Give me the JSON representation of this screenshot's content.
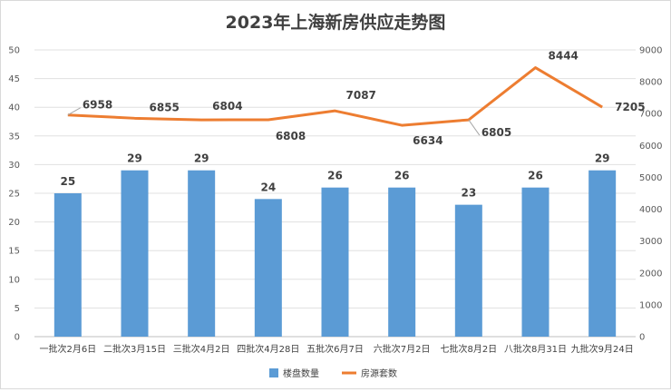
{
  "chart_data": {
    "type": "bar+line",
    "title": "2023年上海新房供应走势图",
    "categories": [
      "一批次2月6日",
      "二批次3月15日",
      "三批次4月2日",
      "四批次4月28日",
      "五批次6月7日",
      "六批次7月2日",
      "七批次8月2日",
      "八批次8月31日",
      "九批次9月24日"
    ],
    "series": [
      {
        "name": "楼盘数量",
        "type": "bar",
        "axis": "left",
        "color": "#5b9bd5",
        "values": [
          25,
          29,
          29,
          24,
          26,
          26,
          23,
          26,
          29
        ]
      },
      {
        "name": "房源套数",
        "type": "line",
        "axis": "right",
        "color": "#ed7d31",
        "values": [
          6958,
          6855,
          6804,
          6808,
          7087,
          6634,
          6805,
          8444,
          7205
        ]
      }
    ],
    "y_left": {
      "min": 0,
      "max": 50,
      "step": 5
    },
    "y_right": {
      "min": 0,
      "max": 9000,
      "step": 1000
    },
    "grid": true,
    "legend": "bottom"
  }
}
